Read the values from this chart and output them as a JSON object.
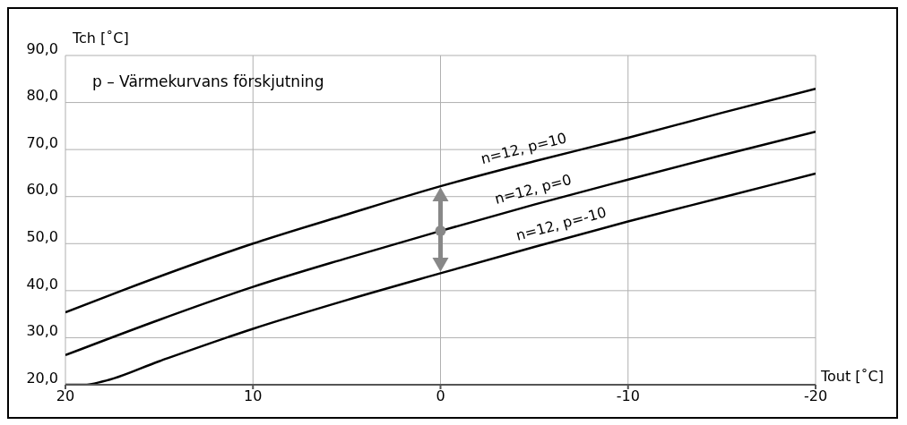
{
  "chart_data": {
    "type": "line",
    "xlabel": "Tout [˚C]",
    "ylabel": "Tch [˚C]",
    "annotations": [
      "p – Värmekurvans förskjutning"
    ],
    "series": [
      {
        "name": "n=12, p=10",
        "color": "#000000",
        "x": [
          20,
          17,
          10,
          5,
          0,
          -5,
          -10,
          -15,
          -20
        ],
        "values": [
          35.4,
          40.0,
          50.0,
          56.2,
          62.2,
          67.5,
          72.5,
          77.8,
          82.9
        ]
      },
      {
        "name": "n=12, p=0",
        "color": "#000000",
        "x": [
          20,
          15,
          10,
          5,
          0,
          -5,
          -10,
          -15,
          -20
        ],
        "values": [
          26.3,
          33.8,
          40.8,
          46.9,
          52.7,
          58.3,
          63.6,
          68.8,
          73.8
        ]
      },
      {
        "name": "n=12, p=-10",
        "color": "#000000",
        "x": [
          20,
          19,
          18,
          15,
          10,
          5,
          0,
          -5,
          -10,
          -15,
          -20
        ],
        "values": [
          20.0,
          20.0,
          20.7,
          25.0,
          31.9,
          38.0,
          43.7,
          49.3,
          54.7,
          59.8,
          64.9
        ]
      }
    ],
    "xlim": [
      20,
      -20
    ],
    "xticks": [
      20,
      10,
      0,
      -10,
      -20
    ],
    "ylim": [
      20,
      90
    ],
    "yticks": [
      {
        "value": 20,
        "label": "20,0"
      },
      {
        "value": 30,
        "label": "30,0"
      },
      {
        "value": 40,
        "label": "40,0"
      },
      {
        "value": 50,
        "label": "50,0"
      },
      {
        "value": 60,
        "label": "60,0"
      },
      {
        "value": 70,
        "label": "70,0"
      },
      {
        "value": 80,
        "label": "80,0"
      },
      {
        "value": 90,
        "label": "90,0"
      }
    ],
    "grid": true,
    "legend": false,
    "marker": "none",
    "line_style": "solid"
  }
}
